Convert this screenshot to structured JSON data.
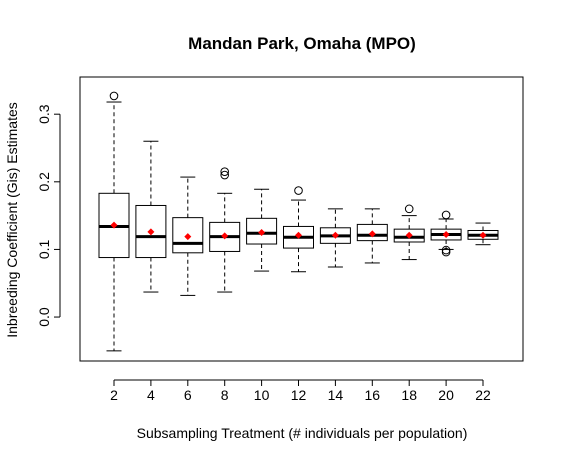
{
  "chart_data": {
    "type": "boxplot",
    "title": "Mandan Park, Omaha (MPO)",
    "xlabel": "Subsampling Treatment (# individuals per population)",
    "ylabel": "Inbreeding Coefficient (Gis) Estimates",
    "ylim": [
      -0.065,
      0.355
    ],
    "yticks": [
      "0.0",
      "0.1",
      "0.2",
      "0.3"
    ],
    "ytick_values": [
      0.0,
      0.1,
      0.2,
      0.3
    ],
    "grid": false,
    "legend": "none",
    "colors": {
      "box": "#000000",
      "median": "#000000",
      "mean_marker": "#ff0000"
    },
    "categories": [
      "2",
      "4",
      "6",
      "8",
      "10",
      "12",
      "14",
      "16",
      "18",
      "20",
      "22"
    ],
    "boxes": [
      {
        "category": "2",
        "whisker_low": -0.05,
        "q1": 0.088,
        "median": 0.134,
        "q3": 0.183,
        "whisker_high": 0.318,
        "mean": 0.136,
        "outliers": [
          0.327
        ]
      },
      {
        "category": "4",
        "whisker_low": 0.037,
        "q1": 0.088,
        "median": 0.119,
        "q3": 0.165,
        "whisker_high": 0.26,
        "mean": 0.126,
        "outliers": []
      },
      {
        "category": "6",
        "whisker_low": 0.032,
        "q1": 0.095,
        "median": 0.109,
        "q3": 0.147,
        "whisker_high": 0.207,
        "mean": 0.119,
        "outliers": []
      },
      {
        "category": "8",
        "whisker_low": 0.037,
        "q1": 0.097,
        "median": 0.119,
        "q3": 0.14,
        "whisker_high": 0.183,
        "mean": 0.12,
        "outliers": [
          0.21,
          0.215
        ]
      },
      {
        "category": "10",
        "whisker_low": 0.068,
        "q1": 0.108,
        "median": 0.124,
        "q3": 0.146,
        "whisker_high": 0.189,
        "mean": 0.125,
        "outliers": []
      },
      {
        "category": "12",
        "whisker_low": 0.067,
        "q1": 0.102,
        "median": 0.118,
        "q3": 0.134,
        "whisker_high": 0.173,
        "mean": 0.121,
        "outliers": [
          0.187
        ]
      },
      {
        "category": "14",
        "whisker_low": 0.074,
        "q1": 0.109,
        "median": 0.12,
        "q3": 0.132,
        "whisker_high": 0.16,
        "mean": 0.121,
        "outliers": []
      },
      {
        "category": "16",
        "whisker_low": 0.08,
        "q1": 0.113,
        "median": 0.121,
        "q3": 0.137,
        "whisker_high": 0.16,
        "mean": 0.123,
        "outliers": []
      },
      {
        "category": "18",
        "whisker_low": 0.085,
        "q1": 0.111,
        "median": 0.118,
        "q3": 0.13,
        "whisker_high": 0.15,
        "mean": 0.121,
        "outliers": [
          0.16
        ]
      },
      {
        "category": "20",
        "whisker_low": 0.1,
        "q1": 0.114,
        "median": 0.122,
        "q3": 0.13,
        "whisker_high": 0.145,
        "mean": 0.122,
        "outliers": [
          0.151,
          0.099,
          0.096
        ]
      },
      {
        "category": "22",
        "whisker_low": 0.107,
        "q1": 0.115,
        "median": 0.121,
        "q3": 0.128,
        "whisker_high": 0.139,
        "mean": 0.121,
        "outliers": []
      }
    ]
  }
}
